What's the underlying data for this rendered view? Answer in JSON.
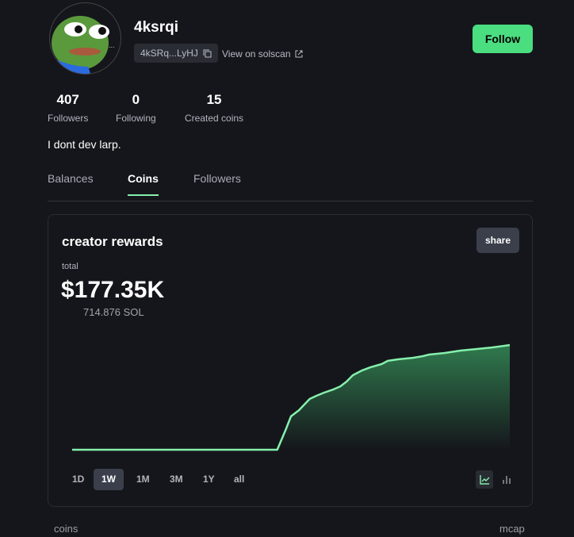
{
  "profile": {
    "username": "4ksrqi",
    "address": "4kSRq...LyHJ",
    "solscan_label": "View on solscan",
    "follow_label": "Follow",
    "bio": "I dont dev larp.",
    "stats": [
      {
        "value": "407",
        "label": "Followers"
      },
      {
        "value": "0",
        "label": "Following"
      },
      {
        "value": "15",
        "label": "Created coins"
      }
    ]
  },
  "tabs": [
    {
      "label": "Balances"
    },
    {
      "label": "Coins",
      "active": true
    },
    {
      "label": "Followers"
    }
  ],
  "rewards": {
    "title": "creator rewards",
    "share_label": "share",
    "total_label": "total",
    "total_usd": "$177.35K",
    "total_sol": "714.876 SOL",
    "ranges": [
      "1D",
      "1W",
      "1M",
      "3M",
      "1Y",
      "all"
    ],
    "active_range": "1W",
    "chart_mode": "line"
  },
  "chart_data": {
    "type": "area",
    "line_color": "#86efac",
    "x_unit": "days",
    "ylabel": "",
    "xlabel": "",
    "x": [
      0,
      3.28,
      3.42,
      3.47,
      3.5,
      3.63,
      3.7,
      3.8,
      3.91,
      4.03,
      4.18,
      4.29,
      4.39,
      4.49,
      4.64,
      4.77,
      4.95,
      5.05,
      5.2,
      5.45,
      5.61,
      5.71,
      5.96,
      6.21,
      6.47,
      6.72,
      7.0
    ],
    "values": [
      0,
      0,
      141,
      195,
      228,
      271,
      303,
      347,
      369,
      390,
      412,
      433,
      466,
      509,
      542,
      563,
      585,
      607,
      617,
      628,
      639,
      650,
      661,
      677,
      688,
      699,
      715
    ]
  },
  "list_header": {
    "left": "coins",
    "right": "mcap"
  },
  "colors": {
    "accent": "#4ade80",
    "background": "#15161b"
  }
}
